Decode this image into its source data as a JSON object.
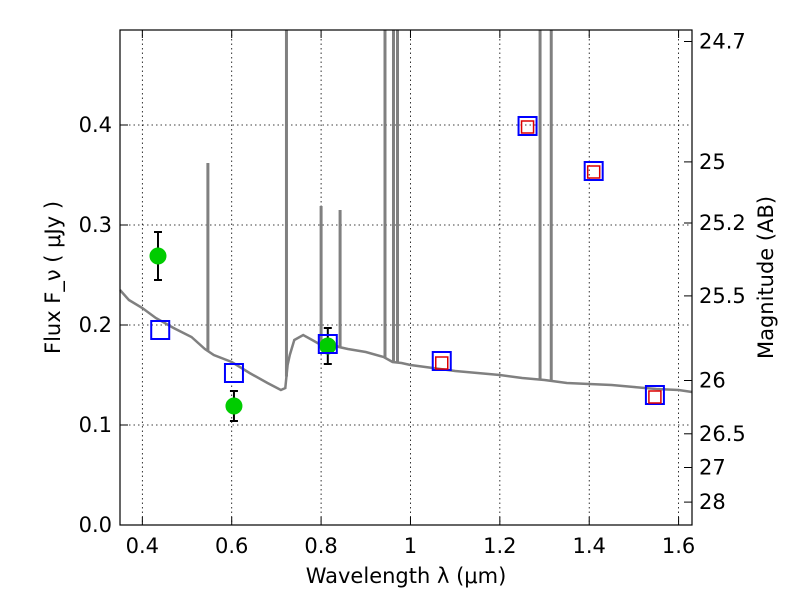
{
  "chart_data": {
    "type": "scatter",
    "title": "",
    "xlabel": "Wavelength  λ (μm)",
    "ylabel": "Flux  F_ν  ( μJy )",
    "ylabel_right": "Magnitude (AB)",
    "xlim": [
      0.35,
      1.63
    ],
    "ylim": [
      0.0,
      0.495
    ],
    "grid": true,
    "grid_style": "dotted",
    "x_ticks": [
      0.4,
      0.6,
      0.8,
      1.0,
      1.2,
      1.4,
      1.6
    ],
    "x_tick_labels": [
      "0.4",
      "0.6",
      "0.8",
      "1",
      "1.2",
      "1.4",
      "1.6"
    ],
    "y_ticks": [
      0.0,
      0.1,
      0.2,
      0.3,
      0.4
    ],
    "y_tick_labels": [
      "0.0",
      "0.1",
      "0.2",
      "0.3",
      "0.4"
    ],
    "right_ticks": [
      {
        "flux": 0.4835,
        "label": "24.7"
      },
      {
        "flux": 0.3631,
        "label": "25"
      },
      {
        "flux": 0.302,
        "label": "25.2"
      },
      {
        "flux": 0.2291,
        "label": "25.5"
      },
      {
        "flux": 0.1445,
        "label": "26"
      },
      {
        "flux": 0.0912,
        "label": "26.5"
      },
      {
        "flux": 0.0575,
        "label": "27"
      },
      {
        "flux": 0.0229,
        "label": "28"
      }
    ],
    "series": [
      {
        "kind": "line",
        "color": "#808080",
        "x": [
          0.35,
          0.37,
          0.4,
          0.43,
          0.47,
          0.51,
          0.54,
          0.56,
          0.6,
          0.64,
          0.68,
          0.71,
          0.72,
          0.725,
          0.73,
          0.74,
          0.76,
          0.78,
          0.8,
          0.82,
          0.84,
          0.86,
          0.9,
          0.94,
          0.96,
          0.98,
          1.0,
          1.05,
          1.1,
          1.15,
          1.2,
          1.25,
          1.3,
          1.35,
          1.4,
          1.45,
          1.5,
          1.55,
          1.6,
          1.63
        ],
        "y": [
          0.235,
          0.225,
          0.217,
          0.207,
          0.197,
          0.188,
          0.176,
          0.17,
          0.163,
          0.152,
          0.142,
          0.135,
          0.137,
          0.16,
          0.17,
          0.185,
          0.19,
          0.185,
          0.18,
          0.182,
          0.178,
          0.176,
          0.173,
          0.168,
          0.163,
          0.162,
          0.16,
          0.157,
          0.154,
          0.152,
          0.15,
          0.147,
          0.145,
          0.142,
          0.141,
          0.14,
          0.138,
          0.136,
          0.135,
          0.133
        ]
      },
      {
        "kind": "emission_lines",
        "color": "#808080",
        "lines": [
          {
            "x": 0.5467,
            "top": 0.362
          },
          {
            "x": 0.7225,
            "top": 0.495
          },
          {
            "x": 0.8,
            "top": 0.319
          },
          {
            "x": 0.8425,
            "top": 0.315
          },
          {
            "x": 0.943,
            "top": 0.495
          },
          {
            "x": 0.962,
            "top": 0.495
          },
          {
            "x": 0.971,
            "top": 0.495
          },
          {
            "x": 1.29,
            "top": 0.495
          },
          {
            "x": 1.315,
            "top": 0.495
          }
        ]
      },
      {
        "kind": "points_with_errors",
        "color": "#00cc00",
        "x": [
          0.435,
          0.605,
          0.815
        ],
        "y": [
          0.269,
          0.119,
          0.179
        ],
        "yerr": [
          0.024,
          0.015,
          0.018
        ]
      },
      {
        "kind": "squares_blue",
        "color": "#0000ff",
        "x": [
          0.44,
          0.605,
          0.815,
          1.07,
          1.262,
          1.41,
          1.547
        ],
        "y": [
          0.195,
          0.152,
          0.181,
          0.164,
          0.399,
          0.354,
          0.13
        ]
      },
      {
        "kind": "squares_red",
        "color": "#dd0000",
        "x": [
          1.07,
          1.262,
          1.41,
          1.547
        ],
        "y": [
          0.162,
          0.398,
          0.353,
          0.128
        ]
      }
    ]
  }
}
